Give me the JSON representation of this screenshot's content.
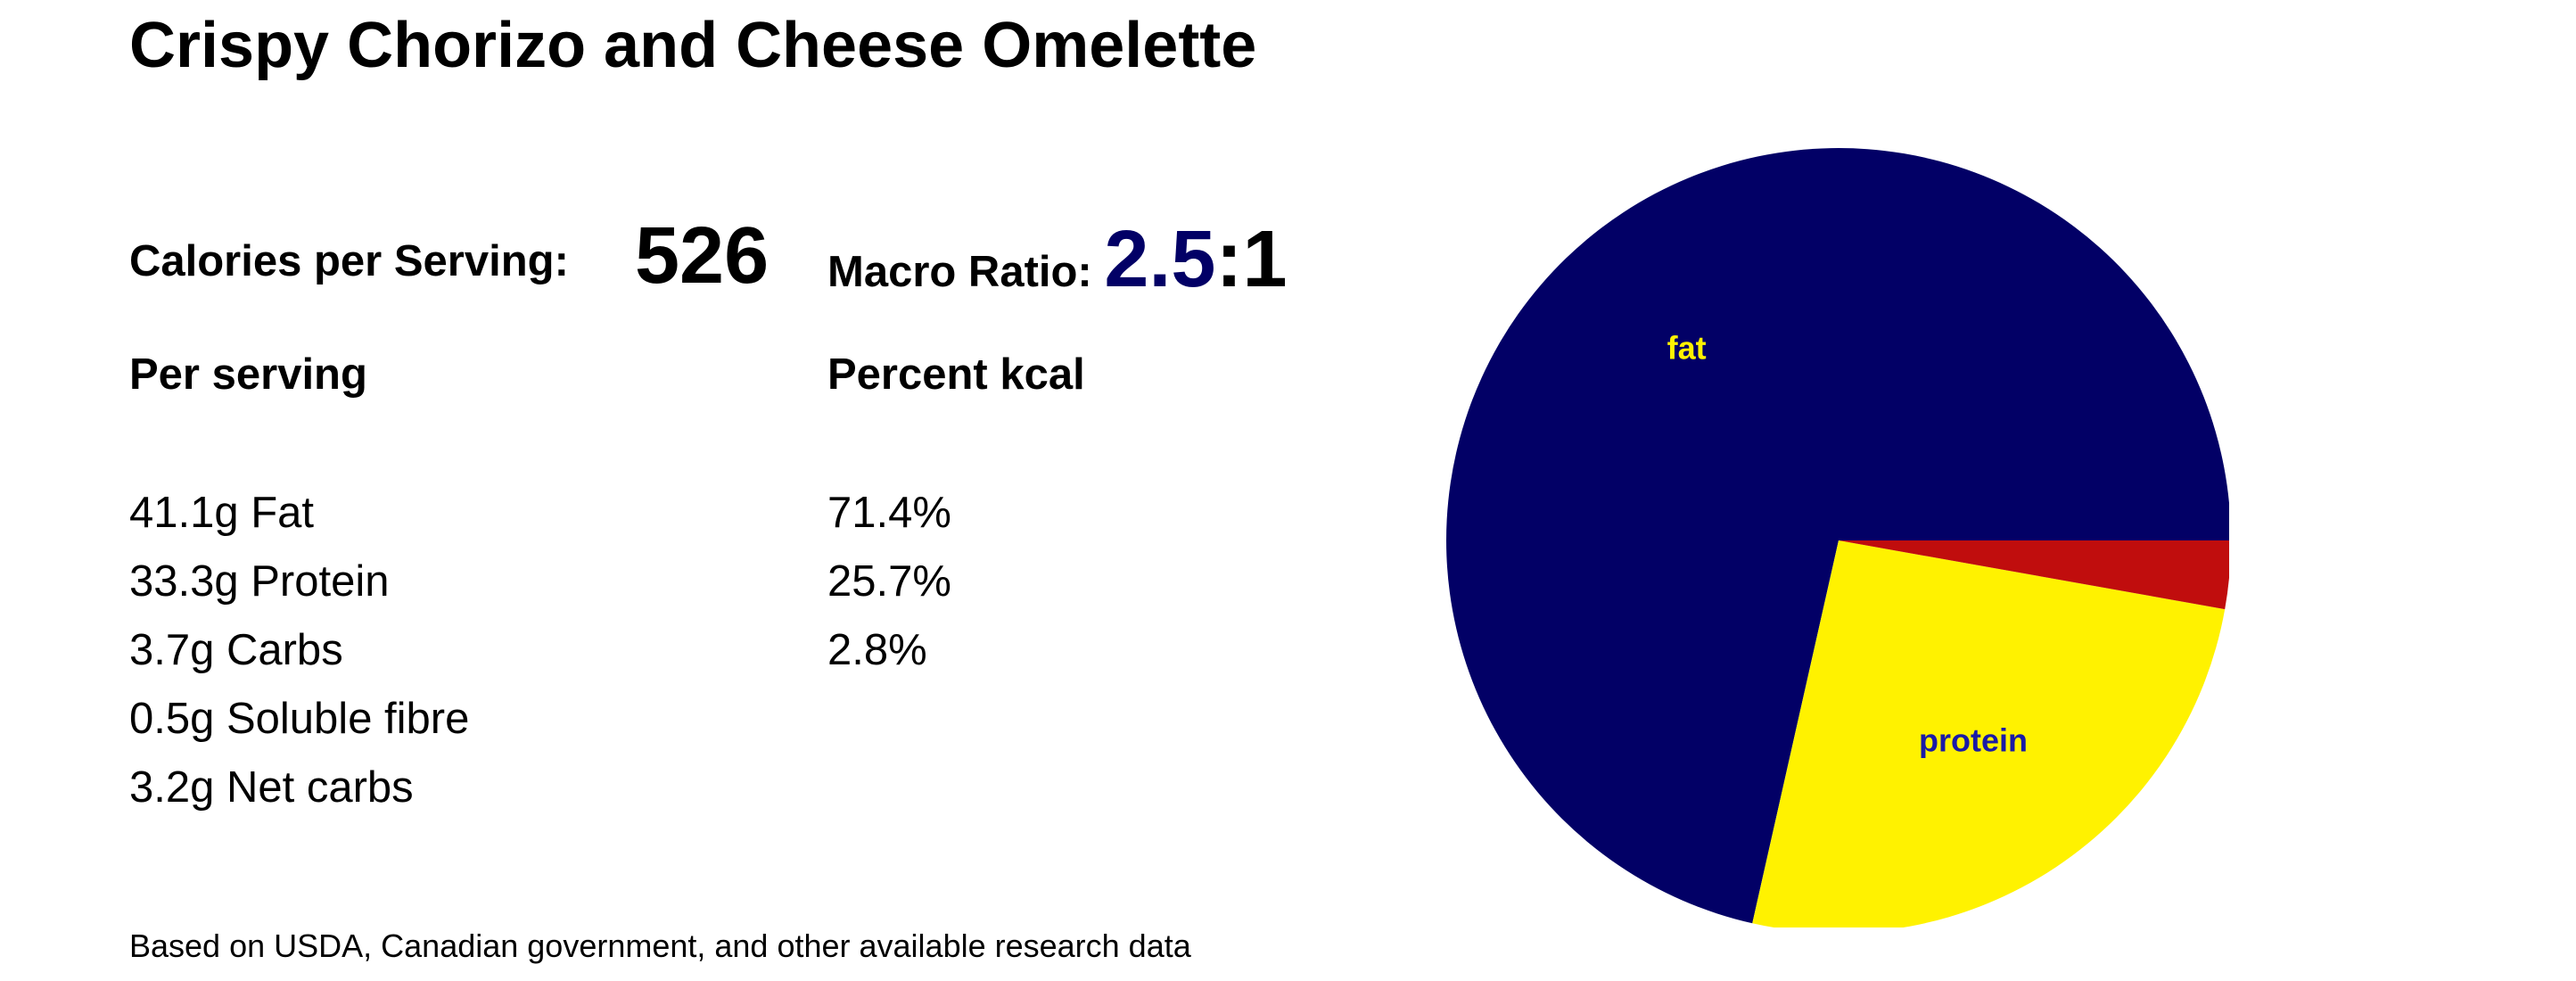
{
  "title": "Crispy Chorizo and Cheese Omelette",
  "calories": {
    "label": "Calories per Serving:",
    "value": "526"
  },
  "macro": {
    "label": "Macro Ratio: ",
    "ratio": "2.5",
    "suffix": ":1"
  },
  "per_serving": {
    "heading": "Per serving",
    "items": [
      "41.1g Fat",
      "33.3g Protein",
      "3.7g Carbs",
      "0.5g Soluble fibre",
      "3.2g Net carbs"
    ]
  },
  "percent_kcal": {
    "heading": "Percent kcal",
    "items": [
      "71.4%",
      "25.7%",
      "2.8%"
    ]
  },
  "footnote": "Based on USDA, Canadian government, and other available research data",
  "colors": {
    "fat": "#020066",
    "protein": "#fff200",
    "carbs": "#c00d0d",
    "ratio": "#020066"
  },
  "chart_data": {
    "type": "pie",
    "slices": [
      {
        "name": "fat",
        "value": 71.4,
        "color": "#020066",
        "label": "fat",
        "label_color": "#fff200"
      },
      {
        "name": "protein",
        "value": 25.7,
        "color": "#fff200",
        "label": "protein",
        "label_color": "#1a1aa6"
      },
      {
        "name": "carbs",
        "value": 2.8,
        "color": "#c00d0d",
        "label": "",
        "label_color": "#ffffff"
      }
    ],
    "start": "3 o'clock, counter-clockwise for fat"
  }
}
